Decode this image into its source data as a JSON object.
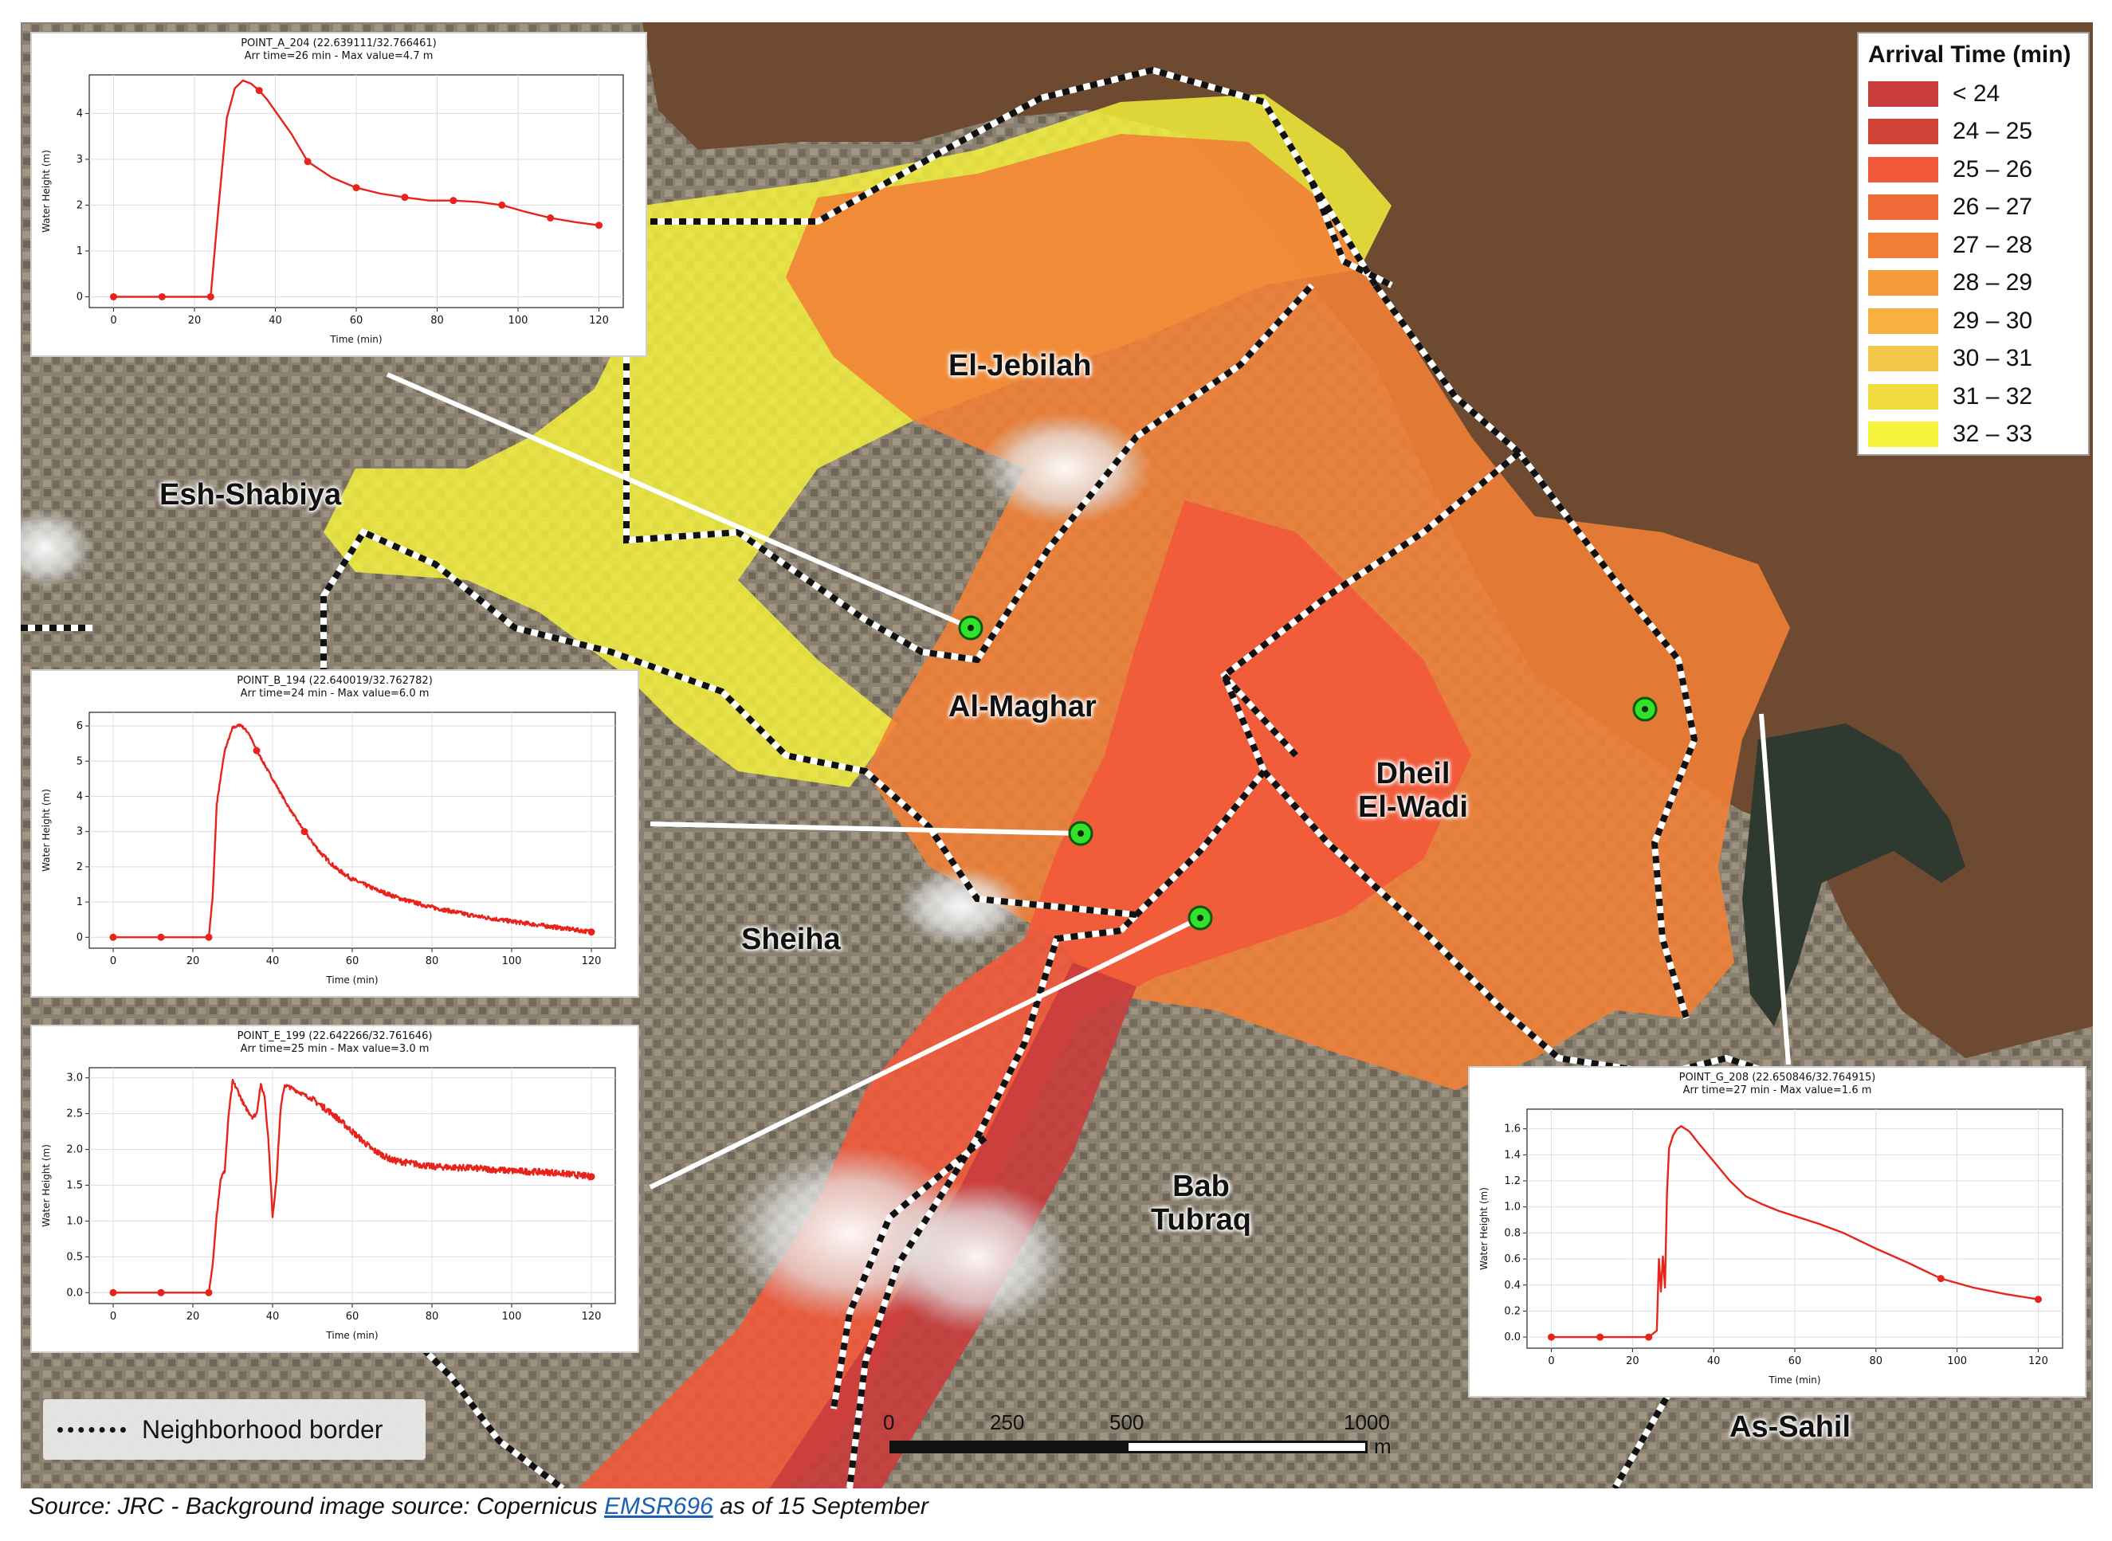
{
  "map": {
    "neighborhoods": [
      {
        "name": "El-Jebilah",
        "lines": [
          "El-Jebilah"
        ]
      },
      {
        "name": "Esh-Shabiya",
        "lines": [
          "Esh-Shabiya"
        ]
      },
      {
        "name": "Al-Maghar",
        "lines": [
          "Al-Maghar"
        ]
      },
      {
        "name": "Dheil El-Wadi",
        "lines": [
          "Dheil",
          "El-Wadi"
        ]
      },
      {
        "name": "Sheiha",
        "lines": [
          "Sheiha"
        ]
      },
      {
        "name": "Bab Tubraq",
        "lines": [
          "Bab",
          "Tubraq"
        ]
      },
      {
        "name": "As-Sahil",
        "lines": [
          "As-Sahil"
        ]
      }
    ],
    "colors": {
      "sea": "#6d4a30",
      "harbor": "#2e3a30",
      "land": "#8a7f6c",
      "border": "#111111"
    }
  },
  "legend": {
    "title": "Arrival Time (min)",
    "items": [
      {
        "label": "< 24",
        "color": "#c93c3c"
      },
      {
        "label": "24 – 25",
        "color": "#d24438"
      },
      {
        "label": "25 – 26",
        "color": "#f2583a"
      },
      {
        "label": "26 – 27",
        "color": "#ef6b37"
      },
      {
        "label": "27 – 28",
        "color": "#f27f35"
      },
      {
        "label": "28 – 29",
        "color": "#f59a3a"
      },
      {
        "label": "29 – 30",
        "color": "#f6b140"
      },
      {
        "label": "30 – 31",
        "color": "#f4c84a"
      },
      {
        "label": "31 – 32",
        "color": "#f2dd40"
      },
      {
        "label": "32 – 33",
        "color": "#f6f43c"
      }
    ]
  },
  "border_legend": {
    "label": "Neighborhood border"
  },
  "scale": {
    "labels": [
      "0",
      "250",
      "500",
      "1000"
    ],
    "unit": "m"
  },
  "source": {
    "prefix": "Source: JRC - Background image source: Copernicus ",
    "link": "EMSR696",
    "suffix": " as of 15 September"
  },
  "chart_data": [
    {
      "type": "line",
      "title": "POINT_A_204 (22.639111/32.766461)",
      "subtitle": "Arr time=26 min - Max value=4.7 m",
      "xlabel": "Time (min)",
      "ylabel": "Water Height (m)",
      "xlim": [
        0,
        120
      ],
      "ylim": [
        0,
        4.7
      ],
      "xticks": [
        0,
        20,
        40,
        60,
        80,
        100,
        120
      ],
      "yticks": [
        0,
        1,
        2,
        3,
        4
      ],
      "grid": true,
      "color": "#e8231c",
      "x": [
        0,
        12,
        24,
        26,
        28,
        30,
        32,
        34,
        36,
        38,
        40,
        44,
        48,
        54,
        60,
        66,
        72,
        78,
        84,
        90,
        96,
        102,
        108,
        114,
        120
      ],
      "y": [
        0,
        0,
        0,
        2.0,
        3.9,
        4.55,
        4.72,
        4.65,
        4.5,
        4.3,
        4.05,
        3.55,
        2.95,
        2.6,
        2.38,
        2.25,
        2.17,
        2.1,
        2.1,
        2.07,
        2.0,
        1.85,
        1.72,
        1.63,
        1.56
      ],
      "markers_x": [
        0,
        12,
        24,
        36,
        48,
        60,
        72,
        84,
        96,
        108,
        120
      ]
    },
    {
      "type": "line",
      "title": "POINT_B_194 (22.640019/32.762782)",
      "subtitle": "Arr time=24 min - Max value=6.0 m",
      "xlabel": "Time (min)",
      "ylabel": "Water Height (m)",
      "xlim": [
        0,
        120
      ],
      "ylim": [
        0,
        6.2
      ],
      "xticks": [
        0,
        20,
        40,
        60,
        80,
        100,
        120
      ],
      "yticks": [
        0,
        1,
        2,
        3,
        4,
        5,
        6
      ],
      "grid": true,
      "color": "#e8231c",
      "noise": 0.12,
      "x": [
        0,
        12,
        24,
        25,
        26,
        28,
        30,
        32,
        34,
        36,
        40,
        44,
        48,
        52,
        56,
        60,
        66,
        72,
        80,
        90,
        100,
        110,
        120
      ],
      "y": [
        0,
        0,
        0,
        1.2,
        3.8,
        5.3,
        5.95,
        6.03,
        5.8,
        5.3,
        4.5,
        3.7,
        3.0,
        2.4,
        1.95,
        1.65,
        1.35,
        1.1,
        0.85,
        0.62,
        0.45,
        0.3,
        0.15
      ],
      "markers_x": [
        0,
        12,
        24,
        36,
        48,
        120
      ]
    },
    {
      "type": "line",
      "title": "POINT_E_199 (22.642266/32.761646)",
      "subtitle": "Arr time=25 min - Max value=3.0 m",
      "xlabel": "Time (min)",
      "ylabel": "Water Height (m)",
      "xlim": [
        0,
        120
      ],
      "ylim": [
        0,
        3.05
      ],
      "xticks": [
        0,
        20,
        40,
        60,
        80,
        100,
        120
      ],
      "yticks": [
        0.0,
        0.5,
        1.0,
        1.5,
        2.0,
        2.5,
        3.0
      ],
      "grid": true,
      "color": "#e8231c",
      "noise": 0.09,
      "x": [
        0,
        12,
        24,
        25,
        26,
        27,
        28,
        29,
        30,
        31,
        33,
        35,
        36,
        37,
        38,
        39,
        40,
        41,
        42,
        43,
        45,
        50,
        55,
        60,
        65,
        70,
        80,
        90,
        100,
        110,
        120
      ],
      "y": [
        0,
        0,
        0,
        0.4,
        1.1,
        1.6,
        1.7,
        2.5,
        2.95,
        2.85,
        2.6,
        2.45,
        2.5,
        2.9,
        2.75,
        2.1,
        1.05,
        1.6,
        2.55,
        2.9,
        2.85,
        2.7,
        2.5,
        2.25,
        2.0,
        1.85,
        1.76,
        1.74,
        1.7,
        1.68,
        1.62
      ],
      "markers_x": [
        0,
        12,
        24,
        120
      ]
    },
    {
      "type": "line",
      "title": "POINT_G_208 (22.650846/32.764915)",
      "subtitle": "Arr time=27 min - Max value=1.6 m",
      "xlabel": "Time (min)",
      "ylabel": "Water Height (m)",
      "xlim": [
        0,
        120
      ],
      "ylim": [
        0,
        1.7
      ],
      "xticks": [
        0,
        20,
        40,
        60,
        80,
        100,
        120
      ],
      "yticks": [
        0.0,
        0.2,
        0.4,
        0.6,
        0.8,
        1.0,
        1.2,
        1.4,
        1.6
      ],
      "grid": true,
      "color": "#e8231c",
      "x": [
        0,
        12,
        24,
        26,
        26.5,
        27,
        27.5,
        28,
        28.5,
        29,
        30,
        31,
        32,
        34,
        36,
        40,
        44,
        48,
        52,
        56,
        60,
        66,
        72,
        80,
        88,
        96,
        104,
        112,
        120
      ],
      "y": [
        0,
        0,
        0,
        0.05,
        0.6,
        0.35,
        0.62,
        0.38,
        1.1,
        1.45,
        1.55,
        1.6,
        1.62,
        1.58,
        1.5,
        1.35,
        1.2,
        1.08,
        1.02,
        0.97,
        0.93,
        0.87,
        0.8,
        0.68,
        0.57,
        0.45,
        0.38,
        0.33,
        0.29
      ],
      "markers_x": [
        0,
        12,
        24,
        96,
        120
      ]
    }
  ]
}
